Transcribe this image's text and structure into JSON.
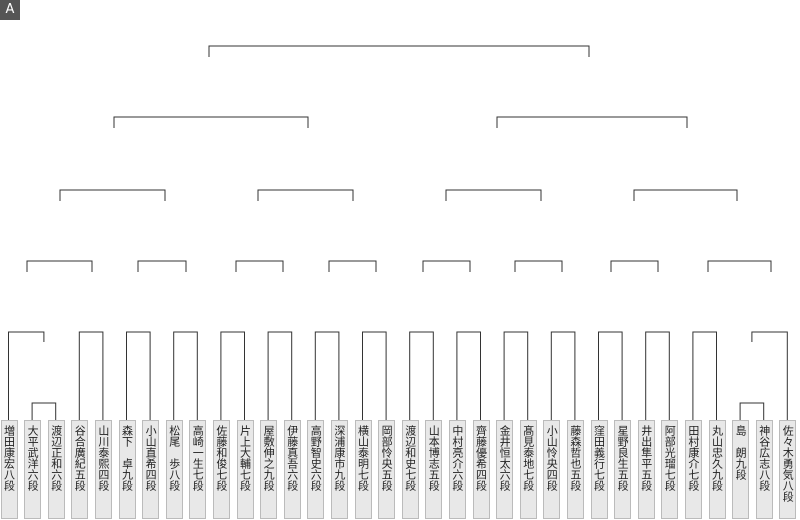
{
  "block_label": "A",
  "players": [
    "増田康宏八段",
    "大平武洋六段",
    "渡辺正和六段",
    "谷合廣紀五段",
    "山川泰熙四段",
    "森下　卓九段",
    "小山直希四段",
    "松尾　歩八段",
    "高崎一生七段",
    "佐藤和俊七段",
    "片上大輔七段",
    "屋敷伸之九段",
    "伊藤真吾六段",
    "高野智史六段",
    "深浦康市九段",
    "横山泰明七段",
    "岡部怜央五段",
    "渡辺和史七段",
    "山本博志五段",
    "中村亮介六段",
    "齊藤優希四段",
    "金井恒太六段",
    "髙見泰地七段",
    "小山怜央四段",
    "藤森哲也五段",
    "窪田義行七段",
    "星野良生五段",
    "井出隼平五段",
    "阿部光瑠七段",
    "田村康介七段",
    "丸山忠久九段",
    "島　朗九段",
    "神谷広志八段",
    "佐々木勇気八段"
  ]
}
